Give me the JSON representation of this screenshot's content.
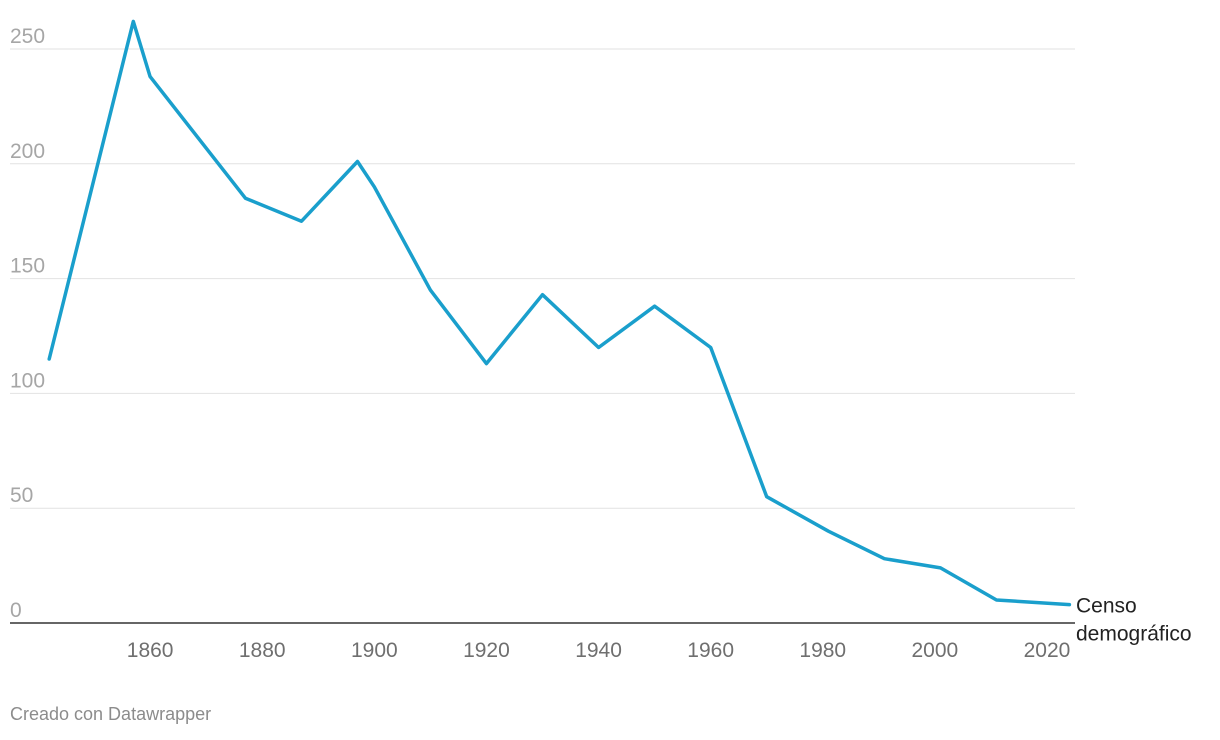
{
  "chart_data": {
    "type": "line",
    "title": "",
    "xlabel": "",
    "ylabel": "",
    "ylim": [
      0,
      250
    ],
    "xlim": [
      1835,
      2025
    ],
    "grid": true,
    "y_ticks": [
      "0",
      "50",
      "100",
      "150",
      "200",
      "250"
    ],
    "x_ticks": [
      "1860",
      "1880",
      "1900",
      "1920",
      "1940",
      "1960",
      "1980",
      "2000",
      "2020"
    ],
    "series": [
      {
        "name": "Censo demográfico",
        "color": "#1a9fcc",
        "x": [
          1842,
          1857,
          1860,
          1877,
          1887,
          1897,
          1900,
          1910,
          1920,
          1930,
          1940,
          1950,
          1960,
          1970,
          1981,
          1991,
          2001,
          2011,
          2024
        ],
        "values": [
          115,
          262,
          238,
          185,
          175,
          201,
          190,
          145,
          113,
          143,
          120,
          138,
          120,
          55,
          40,
          28,
          24,
          10,
          8
        ]
      }
    ]
  },
  "footer": {
    "credit": "Creado con Datawrapper"
  }
}
